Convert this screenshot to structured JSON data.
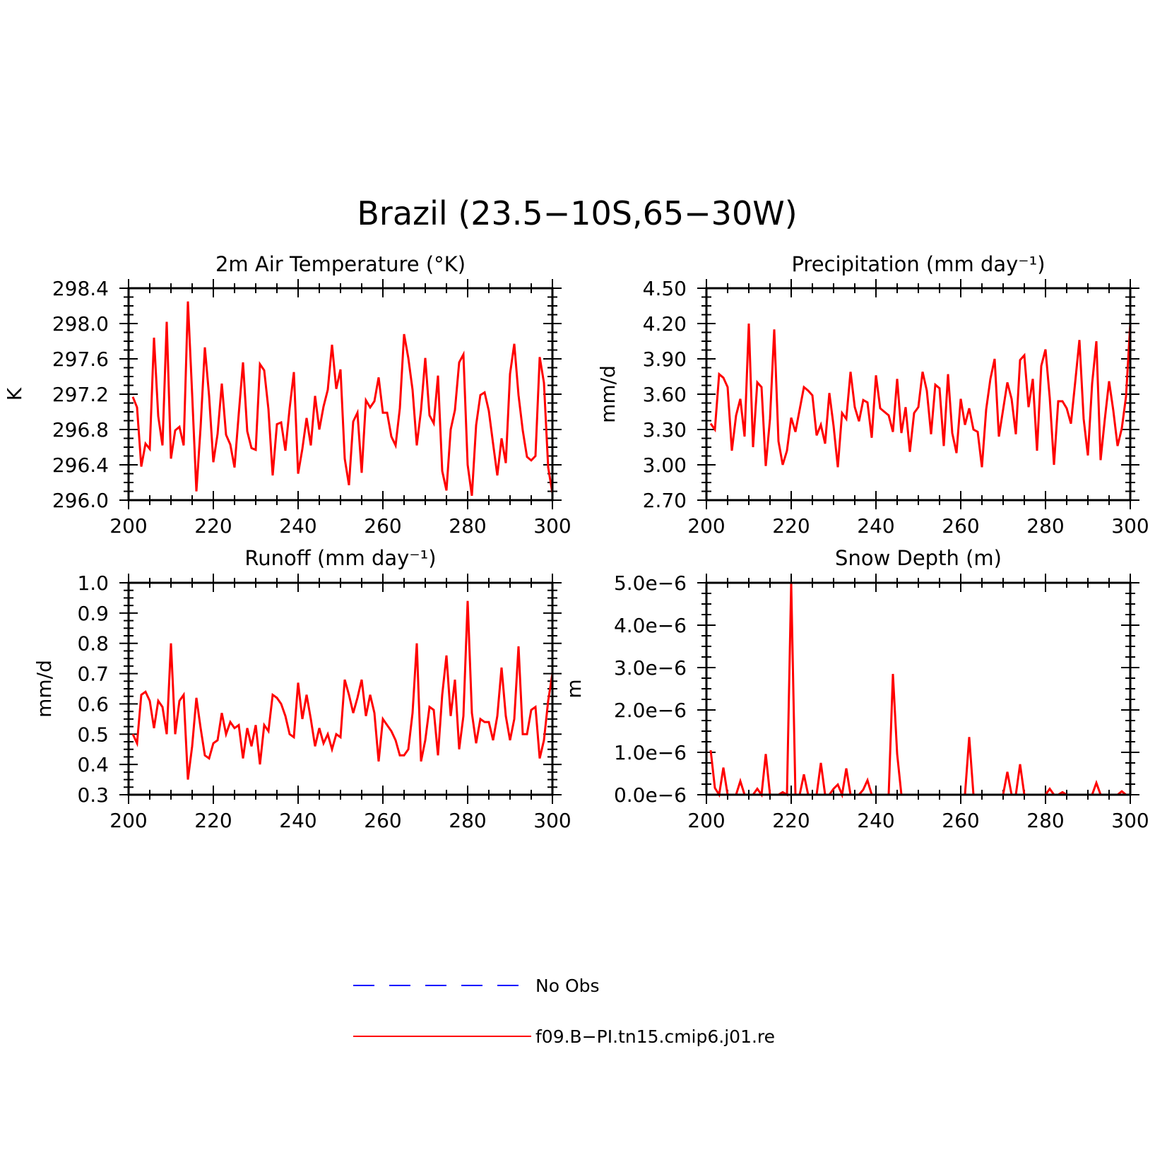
{
  "figure": {
    "title": "Brazil (23.5−10S,65−30W)"
  },
  "legend": {
    "entries": [
      {
        "label": "No Obs",
        "color": "#0000ff",
        "style": "dashed"
      },
      {
        "label": "f09.B−PI.tn15.cmip6.j01.re",
        "color": "#ff0000",
        "style": "solid"
      }
    ]
  },
  "chart_data": [
    {
      "type": "line",
      "title": "2m Air Temperature (°K)",
      "ylabel": "K",
      "xlim": [
        200,
        300
      ],
      "ylim": [
        296.0,
        298.4
      ],
      "xticks": [
        200,
        220,
        240,
        260,
        280,
        300
      ],
      "yticks": [
        296.0,
        296.4,
        296.8,
        297.2,
        297.6,
        298.0,
        298.4
      ],
      "ytick_labels": [
        "296.0",
        "296.4",
        "296.8",
        "297.2",
        "297.6",
        "298.0",
        "298.4"
      ],
      "series": [
        {
          "name": "f09.B−PI.tn15.cmip6.j01.re",
          "color": "#ff0000",
          "x_start": 201,
          "x_step": 1,
          "values": [
            297.17,
            297.05,
            296.38,
            296.64,
            296.58,
            297.84,
            296.95,
            296.62,
            298.02,
            296.47,
            296.79,
            296.83,
            296.62,
            298.25,
            297.2,
            296.1,
            296.83,
            297.73,
            297.18,
            296.43,
            296.75,
            297.32,
            296.74,
            296.63,
            296.37,
            296.98,
            297.56,
            296.78,
            296.59,
            296.57,
            297.54,
            297.47,
            297.03,
            296.28,
            296.86,
            296.88,
            296.56,
            297.04,
            297.45,
            296.3,
            296.58,
            296.93,
            296.62,
            297.18,
            296.8,
            297.06,
            297.25,
            297.76,
            297.26,
            297.48,
            296.47,
            296.17,
            296.89,
            296.99,
            296.31,
            297.13,
            297.05,
            297.12,
            297.39,
            296.99,
            296.99,
            296.72,
            296.62,
            297.04,
            297.88,
            297.61,
            297.25,
            296.62,
            297.02,
            297.61,
            296.96,
            296.87,
            297.41,
            296.33,
            296.11,
            296.8,
            297.02,
            297.56,
            297.65,
            296.4,
            296.05,
            296.85,
            297.19,
            297.22,
            297.01,
            296.64,
            296.28,
            296.7,
            296.42,
            297.43,
            297.77,
            297.19,
            296.79,
            296.49,
            296.45,
            296.5,
            297.62,
            297.33,
            296.37,
            296.08
          ]
        }
      ]
    },
    {
      "type": "line",
      "title": "Precipitation (mm day⁻¹)",
      "ylabel": "mm/d",
      "xlim": [
        200,
        300
      ],
      "ylim": [
        2.7,
        4.5
      ],
      "xticks": [
        200,
        220,
        240,
        260,
        280,
        300
      ],
      "yticks": [
        2.7,
        3.0,
        3.3,
        3.6,
        3.9,
        4.2,
        4.5
      ],
      "ytick_labels": [
        "2.70",
        "3.00",
        "3.30",
        "3.60",
        "3.90",
        "4.20",
        "4.50"
      ],
      "series": [
        {
          "name": "f09.B−PI.tn15.cmip6.j01.re",
          "color": "#ff0000",
          "x_start": 201,
          "x_step": 1,
          "values": [
            3.35,
            3.3,
            3.77,
            3.74,
            3.66,
            3.12,
            3.42,
            3.56,
            3.24,
            4.2,
            3.15,
            3.7,
            3.66,
            2.99,
            3.39,
            4.15,
            3.2,
            3.0,
            3.12,
            3.4,
            3.28,
            3.47,
            3.66,
            3.63,
            3.59,
            3.25,
            3.34,
            3.18,
            3.61,
            3.33,
            2.98,
            3.44,
            3.39,
            3.79,
            3.49,
            3.37,
            3.55,
            3.53,
            3.23,
            3.76,
            3.48,
            3.45,
            3.42,
            3.28,
            3.73,
            3.27,
            3.49,
            3.11,
            3.44,
            3.49,
            3.79,
            3.63,
            3.26,
            3.68,
            3.65,
            3.16,
            3.77,
            3.27,
            3.1,
            3.56,
            3.34,
            3.48,
            3.3,
            3.28,
            2.98,
            3.47,
            3.73,
            3.9,
            3.24,
            3.47,
            3.7,
            3.56,
            3.26,
            3.89,
            3.93,
            3.49,
            3.73,
            3.12,
            3.84,
            3.98,
            3.57,
            3.0,
            3.54,
            3.54,
            3.48,
            3.35,
            3.7,
            4.06,
            3.39,
            3.08,
            3.69,
            4.05,
            3.04,
            3.39,
            3.71,
            3.46,
            3.16,
            3.31,
            3.58,
            4.2
          ]
        }
      ]
    },
    {
      "type": "line",
      "title": "Runoff (mm day⁻¹)",
      "ylabel": "mm/d",
      "xlim": [
        200,
        300
      ],
      "ylim": [
        0.3,
        1.0
      ],
      "xticks": [
        200,
        220,
        240,
        260,
        280,
        300
      ],
      "yticks": [
        0.3,
        0.4,
        0.5,
        0.6,
        0.7,
        0.8,
        0.9,
        1.0
      ],
      "ytick_labels": [
        "0.3",
        "0.4",
        "0.5",
        "0.6",
        "0.7",
        "0.8",
        "0.9",
        "1.0"
      ],
      "series": [
        {
          "name": "f09.B−PI.tn15.cmip6.j01.re",
          "color": "#ff0000",
          "x_start": 201,
          "x_step": 1,
          "values": [
            0.5,
            0.47,
            0.63,
            0.64,
            0.61,
            0.52,
            0.61,
            0.59,
            0.5,
            0.8,
            0.5,
            0.61,
            0.63,
            0.35,
            0.46,
            0.62,
            0.52,
            0.43,
            0.42,
            0.47,
            0.48,
            0.57,
            0.5,
            0.54,
            0.52,
            0.53,
            0.42,
            0.52,
            0.46,
            0.53,
            0.4,
            0.53,
            0.51,
            0.63,
            0.62,
            0.6,
            0.56,
            0.5,
            0.49,
            0.67,
            0.55,
            0.63,
            0.55,
            0.46,
            0.52,
            0.47,
            0.5,
            0.45,
            0.5,
            0.49,
            0.68,
            0.63,
            0.57,
            0.62,
            0.68,
            0.56,
            0.63,
            0.57,
            0.41,
            0.55,
            0.53,
            0.51,
            0.48,
            0.43,
            0.43,
            0.45,
            0.57,
            0.8,
            0.41,
            0.48,
            0.59,
            0.58,
            0.43,
            0.63,
            0.76,
            0.56,
            0.68,
            0.45,
            0.56,
            0.94,
            0.57,
            0.47,
            0.55,
            0.54,
            0.54,
            0.48,
            0.56,
            0.72,
            0.56,
            0.48,
            0.55,
            0.79,
            0.5,
            0.5,
            0.58,
            0.59,
            0.42,
            0.48,
            0.61,
            0.7
          ]
        }
      ]
    },
    {
      "type": "line",
      "title": "Snow Depth (m)",
      "ylabel": "m",
      "xlim": [
        200,
        300
      ],
      "ylim": [
        0.0,
        5e-06
      ],
      "xticks": [
        200,
        220,
        240,
        260,
        280,
        300
      ],
      "yticks": [
        0,
        1e-06,
        2e-06,
        3e-06,
        4e-06,
        5e-06
      ],
      "ytick_labels": [
        "0.0e−6",
        "1.0e−6",
        "2.0e−6",
        "3.0e−6",
        "4.0e−6",
        "5.0e−6"
      ],
      "series": [
        {
          "name": "f09.B−PI.tn15.cmip6.j01.re",
          "color": "#ff0000",
          "x_start": 201,
          "x_step": 1,
          "values": [
            1.05e-06,
            1.6e-07,
            0,
            6.4e-07,
            0,
            0,
            0,
            3.2e-07,
            0,
            0,
            0,
            1.4e-07,
            0,
            9.6e-07,
            0,
            0,
            0,
            6e-08,
            0,
            5e-06,
            0,
            0,
            4.8e-07,
            0,
            0,
            0,
            7.5e-07,
            0,
            0,
            1.4e-07,
            2.4e-07,
            0,
            6.2e-07,
            0,
            0,
            0,
            1.2e-07,
            3.4e-07,
            0,
            0,
            0,
            0,
            0,
            2.85e-06,
            9.6e-07,
            0,
            0,
            0,
            0,
            0,
            0,
            0,
            0,
            0,
            0,
            0,
            0,
            0,
            0,
            0,
            0,
            1.36e-06,
            0,
            0,
            0,
            0,
            0,
            0,
            0,
            0,
            5.4e-07,
            0,
            0,
            7.2e-07,
            0,
            0,
            0,
            0,
            0,
            0,
            1.4e-07,
            0,
            0,
            6e-08,
            0,
            0,
            0,
            0,
            0,
            0,
            0,
            2.8e-07,
            0,
            0,
            0,
            0,
            0,
            8e-08,
            0,
            0
          ]
        }
      ]
    }
  ]
}
